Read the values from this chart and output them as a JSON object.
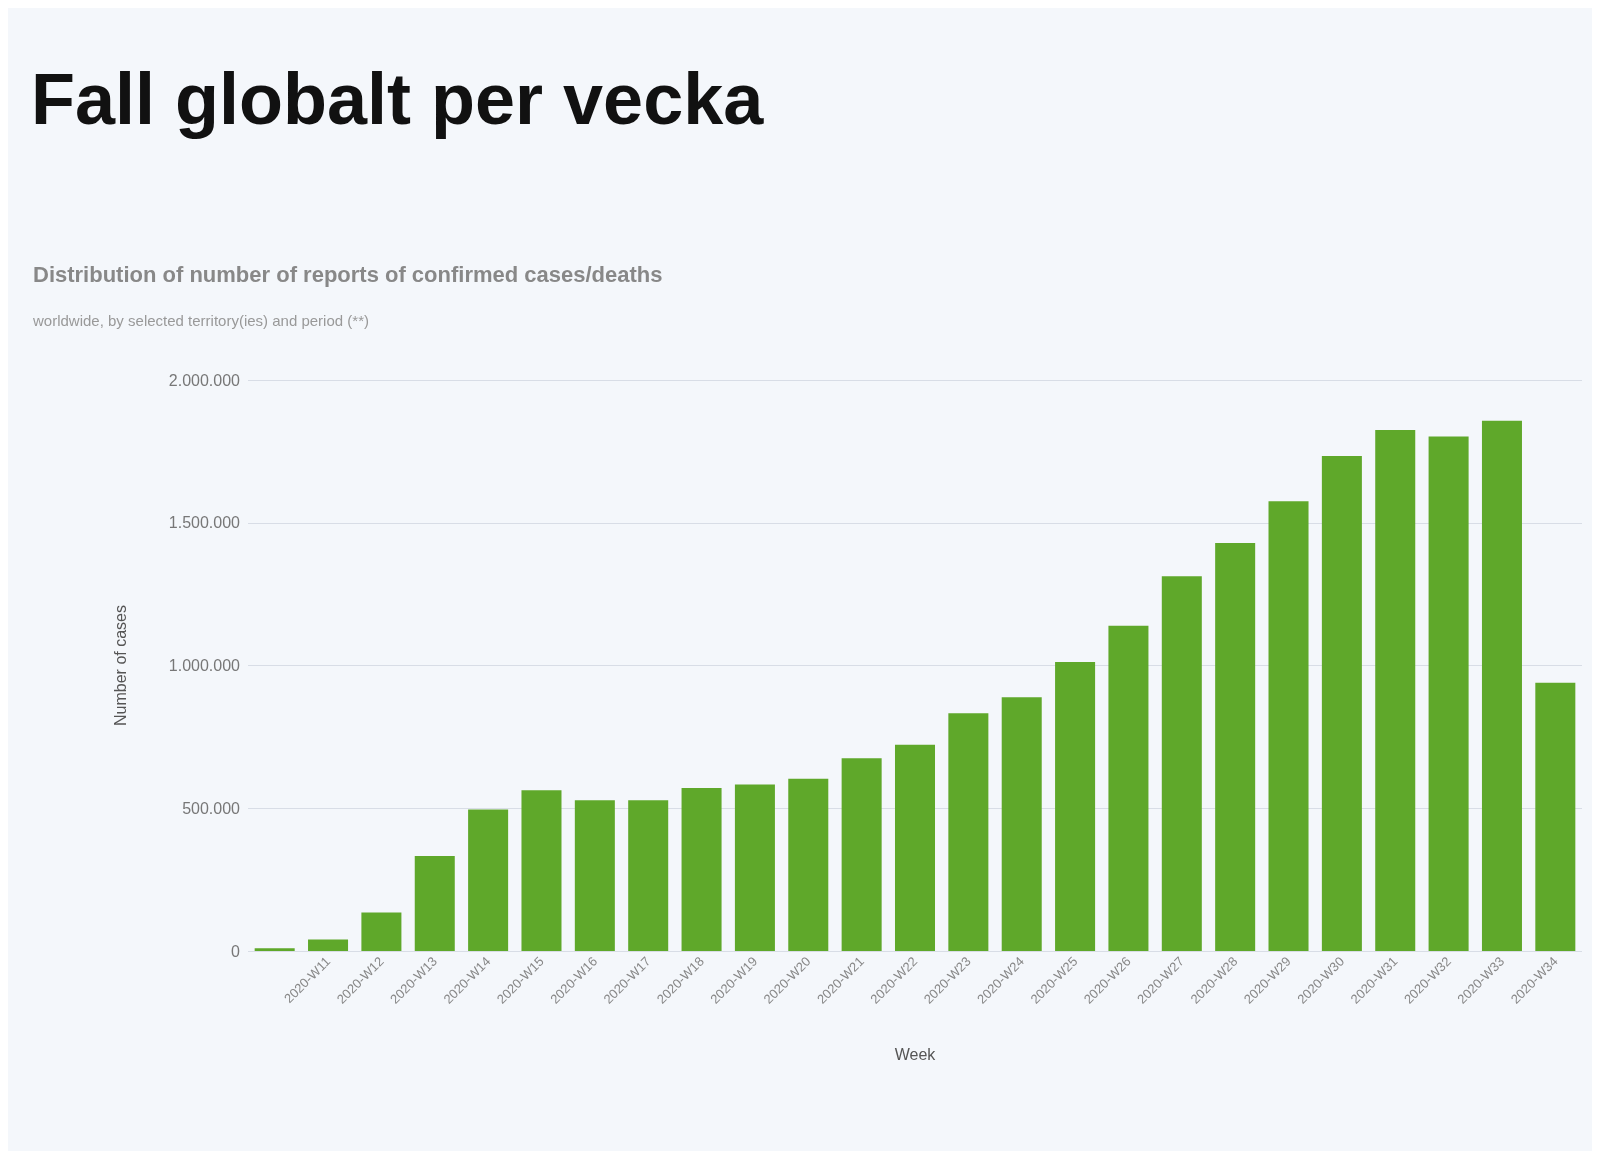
{
  "chart_data": {
    "type": "bar",
    "title": "Fall globalt per vecka",
    "subtitle": "Distribution of number of reports of confirmed cases/deaths",
    "annotations": [
      "worldwide, by selected territory(ies) and period (**)"
    ],
    "xlabel": "Week",
    "ylabel": "Number of cases",
    "categories": [
      null,
      "2020-W11",
      "2020-W12",
      "2020-W13",
      "2020-W14",
      "2020-W15",
      "2020-W16",
      "2020-W17",
      "2020-W18",
      "2020-W19",
      "2020-W20",
      "2020-W21",
      "2020-W22",
      "2020-W23",
      "2020-W24",
      "2020-W25",
      "2020-W26",
      "2020-W27",
      "2020-W28",
      "2020-W29",
      "2020-W30",
      "2020-W31",
      "2020-W32",
      "2020-W33",
      "2020-W34"
    ],
    "values": [
      10000,
      40000,
      135000,
      333000,
      496000,
      563000,
      528000,
      528000,
      571000,
      583000,
      603000,
      675000,
      722000,
      833000,
      889000,
      1012000,
      1139000,
      1313000,
      1429000,
      1575000,
      1734000,
      1825000,
      1802000,
      1857000,
      940000
    ],
    "color": "#5fa82a",
    "ylim": [
      0,
      2000000
    ],
    "yticks": [
      {
        "value": 0,
        "label": "0"
      },
      {
        "value": 500000,
        "label": "500.000"
      },
      {
        "value": 1000000,
        "label": "1.000.000"
      },
      {
        "value": 1500000,
        "label": "1.500.000"
      },
      {
        "value": 2000000,
        "label": "2.000.000"
      }
    ],
    "grid": "y"
  }
}
